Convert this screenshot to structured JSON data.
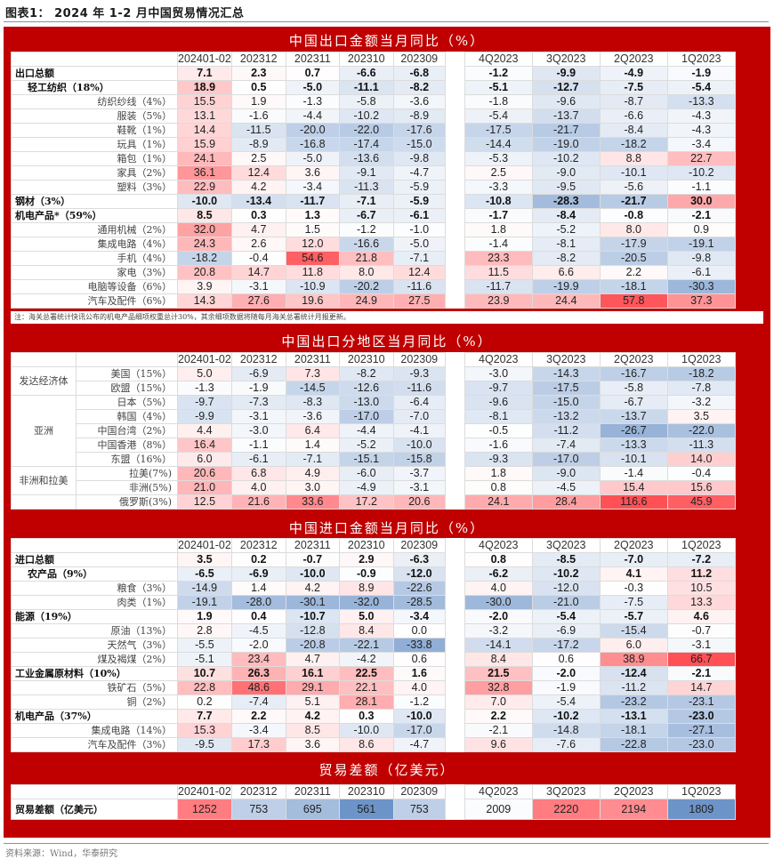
{
  "figure": {
    "title": "图表1：  2024 年 1-2 月中国贸易情况汇总",
    "source": "资料来源：Wind，华泰研究",
    "note": "注：海关总署统计快讯公布的机电产品细项权重总计30%，其余细项数据将随每月海关总署统计月报更新。"
  },
  "colors": {
    "frame": "#c00000",
    "pos_max": "#f0484f",
    "neg_max": "#3b6fb6",
    "neutral": "#ffffff"
  },
  "columns": [
    "202401-02",
    "202312",
    "202311",
    "202310",
    "202309",
    "4Q2023",
    "3Q2023",
    "2Q2023",
    "1Q2023"
  ],
  "chart_data": {
    "type": "table",
    "title": "2024 年 1-2 月中国贸易情况汇总",
    "columns": [
      "202401-02",
      "202312",
      "202311",
      "202310",
      "202309",
      "4Q2023",
      "3Q2023",
      "2Q2023",
      "1Q2023"
    ],
    "sections": [
      {
        "title": "中国出口金额当月同比（%）",
        "rows": [
          {
            "label": "出口总额",
            "level": 0,
            "bold": true,
            "values": [
              7.1,
              2.3,
              0.7,
              -6.6,
              -6.8,
              -1.2,
              -9.9,
              -4.9,
              -1.9
            ]
          },
          {
            "label": "轻工纺织（18%）",
            "level": 1,
            "bold": true,
            "values": [
              18.9,
              0.5,
              -5.0,
              -11.1,
              -8.2,
              -5.1,
              -12.7,
              -7.5,
              -5.4
            ]
          },
          {
            "label": "纺织纱线（4%）",
            "level": 2,
            "bold": false,
            "values": [
              15.5,
              1.9,
              -1.3,
              -5.8,
              -3.6,
              -1.8,
              -9.6,
              -8.7,
              -13.3
            ]
          },
          {
            "label": "服装（5%）",
            "level": 2,
            "bold": false,
            "values": [
              13.1,
              -1.6,
              -4.4,
              -10.2,
              -8.9,
              -5.4,
              -13.7,
              -6.6,
              -4.3
            ]
          },
          {
            "label": "鞋靴（1%）",
            "level": 2,
            "bold": false,
            "values": [
              14.4,
              -11.5,
              -20.0,
              -22.0,
              -17.6,
              -17.5,
              -21.7,
              -8.4,
              -4.3
            ]
          },
          {
            "label": "玩具（1%）",
            "level": 2,
            "bold": false,
            "values": [
              15.9,
              -8.9,
              -16.8,
              -17.4,
              -15.0,
              -14.4,
              -19.0,
              -18.2,
              -3.4
            ]
          },
          {
            "label": "箱包（1%）",
            "level": 2,
            "bold": false,
            "values": [
              24.1,
              2.5,
              -5.0,
              -13.6,
              -9.8,
              -5.3,
              -10.2,
              8.8,
              22.7
            ]
          },
          {
            "label": "家具（2%）",
            "level": 2,
            "bold": false,
            "values": [
              36.1,
              12.4,
              3.6,
              -9.1,
              -4.7,
              2.5,
              -9.0,
              -10.1,
              -10.2
            ]
          },
          {
            "label": "塑料（3%）",
            "level": 2,
            "bold": false,
            "values": [
              22.9,
              4.2,
              -3.4,
              -11.3,
              -5.9,
              -3.3,
              -9.5,
              -5.6,
              -1.1
            ]
          },
          {
            "label": "钢材（3%）",
            "level": 0,
            "bold": true,
            "values": [
              -10.0,
              -13.4,
              -11.7,
              -7.1,
              -5.9,
              -10.8,
              -28.3,
              -21.7,
              30.0
            ]
          },
          {
            "label": "机电产品*（59%）",
            "level": 0,
            "bold": true,
            "values": [
              8.5,
              0.3,
              1.3,
              -6.7,
              -6.1,
              -1.7,
              -8.4,
              -0.8,
              -2.1
            ]
          },
          {
            "label": "通用机械（2%）",
            "level": 2,
            "bold": false,
            "values": [
              32.0,
              4.7,
              1.5,
              -1.2,
              -1.0,
              1.8,
              -5.2,
              8.0,
              0.9
            ]
          },
          {
            "label": "集成电路（4%）",
            "level": 2,
            "bold": false,
            "values": [
              24.3,
              2.6,
              12.0,
              -16.6,
              -5.0,
              -1.4,
              -8.1,
              -17.9,
              -19.1
            ]
          },
          {
            "label": "手机（4%）",
            "level": 2,
            "bold": false,
            "values": [
              -18.2,
              -0.4,
              54.6,
              21.8,
              -7.1,
              23.3,
              -8.2,
              -20.5,
              -9.8
            ]
          },
          {
            "label": "家电（3%）",
            "level": 2,
            "bold": false,
            "values": [
              20.8,
              14.7,
              11.8,
              8.0,
              12.4,
              11.5,
              6.6,
              2.2,
              -6.1
            ]
          },
          {
            "label": "电脑等设备（6%）",
            "level": 2,
            "bold": false,
            "values": [
              3.9,
              -3.1,
              -10.9,
              -20.2,
              -11.6,
              -11.7,
              -19.9,
              -18.1,
              -30.3
            ]
          },
          {
            "label": "汽车及配件（6%）",
            "level": 2,
            "bold": false,
            "values": [
              14.3,
              27.6,
              19.6,
              24.9,
              27.5,
              23.9,
              24.4,
              57.8,
              37.3
            ]
          }
        ]
      },
      {
        "title": "中国出口分地区当月同比（%）",
        "rows": [
          {
            "group": "发达经济体",
            "label": "美国（15%）",
            "values": [
              5.0,
              -6.9,
              7.3,
              -8.2,
              -9.3,
              -3.0,
              -14.3,
              -16.7,
              -18.2
            ]
          },
          {
            "group": "发达经济体",
            "label": "欧盟（15%）",
            "values": [
              -1.3,
              -1.9,
              -14.5,
              -12.6,
              -11.6,
              -9.7,
              -17.5,
              -5.8,
              -7.8
            ]
          },
          {
            "group": "亚洲",
            "label": "日本（5%）",
            "values": [
              -9.7,
              -7.3,
              -8.3,
              -13.0,
              -6.4,
              -9.6,
              -15.0,
              -6.7,
              -3.2
            ]
          },
          {
            "group": "亚洲",
            "label": "韩国（4%）",
            "values": [
              -9.9,
              -3.1,
              -3.6,
              -17.0,
              -7.0,
              -8.1,
              -13.2,
              -13.7,
              3.5
            ]
          },
          {
            "group": "亚洲",
            "label": "中国台湾（2%）",
            "values": [
              4.4,
              -3.0,
              6.4,
              -4.4,
              -4.1,
              -0.5,
              -11.2,
              -26.7,
              -22.0
            ]
          },
          {
            "group": "亚洲",
            "label": "中国香港（8%）",
            "values": [
              16.4,
              -1.1,
              1.4,
              -5.2,
              -10.0,
              -1.6,
              -7.4,
              -13.3,
              -11.3
            ]
          },
          {
            "group": "亚洲",
            "label": "东盟（16%）",
            "values": [
              6.0,
              -6.1,
              -7.1,
              -15.1,
              -15.8,
              -9.3,
              -17.0,
              -10.1,
              14.0
            ]
          },
          {
            "group": "非洲和拉美",
            "label": "拉美(7%)",
            "values": [
              20.6,
              6.8,
              4.9,
              -6.0,
              -3.7,
              1.8,
              -9.0,
              -1.4,
              -0.4
            ]
          },
          {
            "group": "非洲和拉美",
            "label": "非洲(5%)",
            "values": [
              21.0,
              4.0,
              3.0,
              -4.9,
              -3.1,
              0.8,
              -4.5,
              15.4,
              15.6
            ]
          },
          {
            "group": "",
            "label": "俄罗斯(3%)",
            "values": [
              12.5,
              21.6,
              33.6,
              17.2,
              20.6,
              24.1,
              28.4,
              116.6,
              45.9
            ]
          }
        ]
      },
      {
        "title": "中国进口金额当月同比（%）",
        "rows": [
          {
            "label": "进口总额",
            "level": 0,
            "bold": true,
            "values": [
              3.5,
              0.2,
              -0.7,
              2.9,
              -6.3,
              0.8,
              -8.5,
              -7.0,
              -7.2
            ]
          },
          {
            "label": "农产品（9%）",
            "level": 1,
            "bold": true,
            "values": [
              -6.5,
              -6.9,
              -10.0,
              -0.9,
              -12.0,
              -6.2,
              -10.2,
              4.1,
              11.2
            ]
          },
          {
            "label": "粮食（3%）",
            "level": 2,
            "bold": false,
            "values": [
              -14.9,
              1.4,
              4.2,
              8.9,
              -22.6,
              4.0,
              -12.0,
              -0.3,
              10.5
            ]
          },
          {
            "label": "肉类（1%）",
            "level": 2,
            "bold": false,
            "values": [
              -19.1,
              -28.0,
              -30.1,
              -32.0,
              -28.5,
              -30.0,
              -21.0,
              -7.5,
              13.3
            ]
          },
          {
            "label": "能源（19%）",
            "level": 0,
            "bold": true,
            "values": [
              1.9,
              0.4,
              -10.7,
              5.0,
              -3.4,
              -2.0,
              -5.4,
              -5.7,
              4.6
            ]
          },
          {
            "label": "原油（13%）",
            "level": 2,
            "bold": false,
            "values": [
              2.8,
              -4.5,
              -12.8,
              8.4,
              0.0,
              -3.2,
              -6.9,
              -15.4,
              -0.7
            ]
          },
          {
            "label": "天然气（3%）",
            "level": 2,
            "bold": false,
            "values": [
              -5.5,
              -2.0,
              -20.8,
              -22.1,
              -33.8,
              -14.1,
              -17.2,
              6.0,
              -3.1
            ]
          },
          {
            "label": "煤及褐煤（2%）",
            "level": 2,
            "bold": false,
            "values": [
              -5.1,
              23.4,
              4.7,
              -4.2,
              0.6,
              8.4,
              0.6,
              38.9,
              66.7
            ]
          },
          {
            "label": "工业金属原材料（10%）",
            "level": 0,
            "bold": true,
            "values": [
              10.7,
              26.3,
              16.1,
              22.5,
              1.6,
              21.5,
              -2.0,
              -12.4,
              -2.1
            ]
          },
          {
            "label": "铁矿石（5%）",
            "level": 2,
            "bold": false,
            "values": [
              22.8,
              48.6,
              29.1,
              22.1,
              4.0,
              32.8,
              -1.9,
              -11.2,
              14.7
            ]
          },
          {
            "label": "铜（2%）",
            "level": 2,
            "bold": false,
            "values": [
              0.2,
              -7.4,
              5.1,
              28.1,
              -1.2,
              7.0,
              -5.4,
              -23.2,
              -23.1
            ]
          },
          {
            "label": "机电产品（37%）",
            "level": 0,
            "bold": true,
            "values": [
              7.7,
              2.2,
              4.2,
              0.3,
              -10.0,
              2.2,
              -10.2,
              -13.1,
              -23.0
            ]
          },
          {
            "label": "集成电路（14%）",
            "level": 2,
            "bold": false,
            "values": [
              15.3,
              -3.4,
              8.5,
              -10.0,
              -17.0,
              -2.1,
              -14.8,
              -18.1,
              -27.1
            ]
          },
          {
            "label": "汽车及配件（3%）",
            "level": 2,
            "bold": false,
            "values": [
              -9.5,
              17.3,
              3.6,
              8.6,
              -4.7,
              9.6,
              -7.6,
              -22.8,
              -23.0
            ]
          }
        ]
      },
      {
        "title": "贸易差额（亿美元）",
        "rows": [
          {
            "label": "贸易差额（亿美元）",
            "level": 0,
            "bold": true,
            "values": [
              1252,
              753,
              695,
              561,
              753,
              2009,
              2220,
              2194,
              1809
            ]
          }
        ]
      }
    ]
  }
}
